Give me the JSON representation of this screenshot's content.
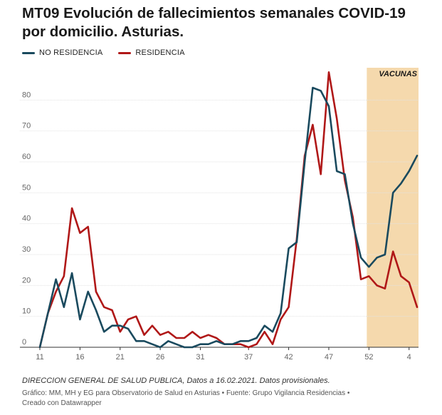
{
  "title": "MT09 Evolución de fallecimientos semanales  COVID-19 por domicilio. Asturias.",
  "notes": "DIRECCION GENERAL DE SALUD PUBLICA, Datos a 16.02.2021. Datos provisionales.",
  "footer": {
    "line1": "Gráfico: MM, MH y EG para Observatorio de Salud en Asturias • Fuente: Grupo Vigilancia Residencias •",
    "line2": "Creado con Datawrapper"
  },
  "colors": {
    "no_residencia": "#1a4a5e",
    "residencia": "#b01818",
    "highlight": "#f5d9ad"
  },
  "chart_data": {
    "type": "line",
    "title": "MT09 Evolución de fallecimientos semanales  COVID-19 por domicilio. Asturias.",
    "xlabel": "",
    "ylabel": "",
    "ylim": [
      0,
      90
    ],
    "y_ticks": [
      "0",
      "10",
      "20",
      "30",
      "40",
      "50",
      "60",
      "70",
      "80"
    ],
    "x_ticks": [
      "11",
      "16",
      "21",
      "26",
      "31",
      "37",
      "42",
      "47",
      "52",
      "4"
    ],
    "grid": true,
    "legend_position": "top-left",
    "highlight_label": "VACUNAS",
    "series": [
      {
        "name": "NO RESIDENCIA",
        "values": [
          0,
          11,
          22,
          13,
          24,
          9,
          18,
          12,
          5,
          7,
          7,
          6,
          2,
          2,
          1,
          0,
          2,
          1,
          0,
          0,
          1,
          1,
          2,
          1,
          1,
          2,
          2,
          3,
          7,
          5,
          11,
          32,
          34,
          60,
          84,
          83,
          78,
          57,
          56,
          40,
          29,
          26,
          29,
          30,
          50,
          53,
          57,
          62
        ]
      },
      {
        "name": "RESIDENCIA",
        "values": [
          0,
          11,
          18,
          23,
          45,
          37,
          39,
          18,
          13,
          12,
          5,
          9,
          10,
          4,
          7,
          4,
          5,
          3,
          3,
          5,
          3,
          4,
          3,
          1,
          1,
          1,
          0,
          1,
          5,
          1,
          9,
          13,
          35,
          62,
          72,
          56,
          89,
          74,
          54,
          42,
          22,
          23,
          20,
          19,
          31,
          23,
          21,
          13
        ]
      }
    ]
  }
}
